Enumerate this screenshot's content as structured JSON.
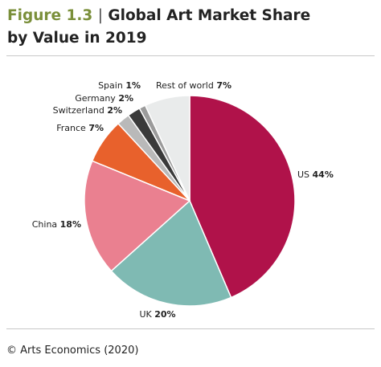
{
  "figure": {
    "number": "Figure 1.3",
    "separator": "|",
    "title_line1": "Global Art Market Share",
    "title_line2": "by Value in 2019"
  },
  "source": "© Arts Economics (2020)",
  "chart_data": {
    "type": "pie",
    "title": "Global Art Market Share by Value in 2019",
    "unit": "%",
    "slices": [
      {
        "label": "US",
        "value": 44,
        "color": "#b0124a"
      },
      {
        "label": "UK",
        "value": 20,
        "color": "#7fbab3"
      },
      {
        "label": "China",
        "value": 18,
        "color": "#ea8090"
      },
      {
        "label": "France",
        "value": 7,
        "color": "#e8612c"
      },
      {
        "label": "Switzerland",
        "value": 2,
        "color": "#b9b9b9"
      },
      {
        "label": "Germany",
        "value": 2,
        "color": "#3a3a3a"
      },
      {
        "label": "Spain",
        "value": 1,
        "color": "#9b9b9b"
      },
      {
        "label": "Rest of world",
        "value": 7,
        "color": "#e9ebeb"
      }
    ]
  }
}
